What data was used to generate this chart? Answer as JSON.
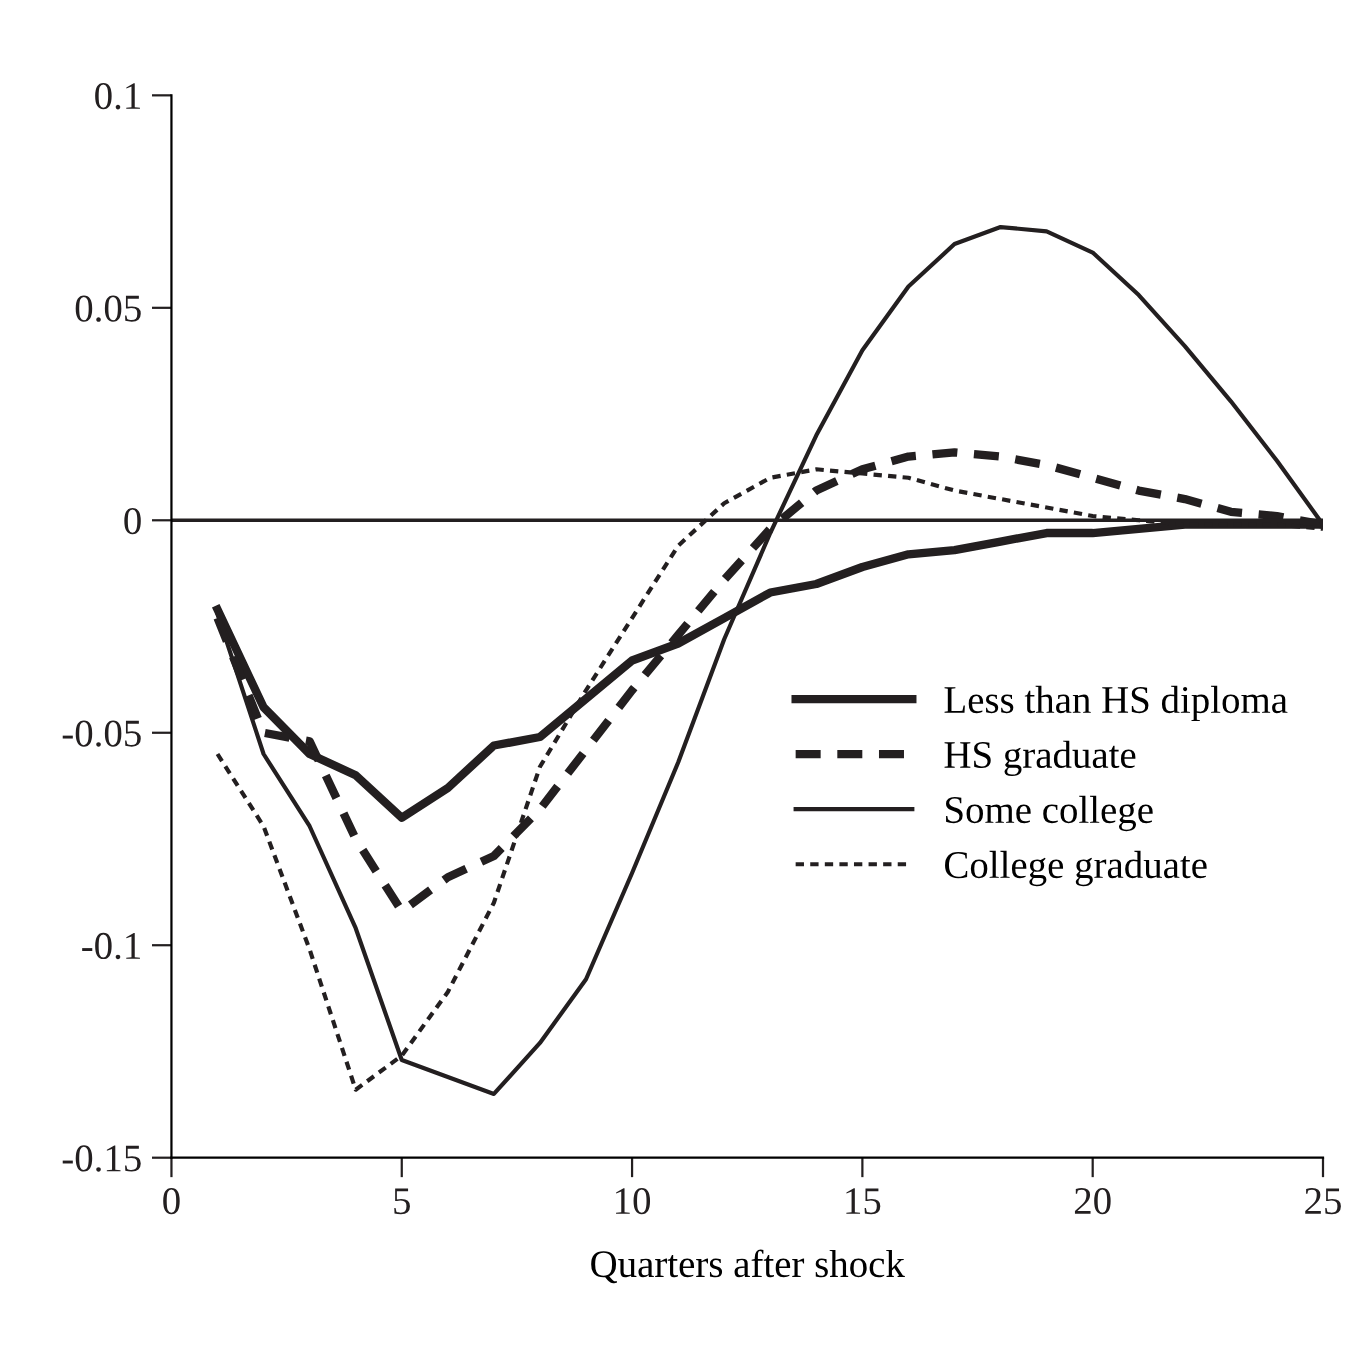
{
  "chart_data": {
    "type": "line",
    "xlabel": "Quarters after shock",
    "x": [
      1,
      2,
      3,
      4,
      5,
      6,
      7,
      8,
      9,
      10,
      11,
      12,
      13,
      14,
      15,
      16,
      17,
      18,
      19,
      20,
      21,
      22,
      23,
      24,
      25
    ],
    "series": [
      {
        "name": "Less than HS diploma",
        "color": "#231f20",
        "line_style": "solid",
        "values": [
          -0.021,
          -0.044,
          -0.055,
          -0.06,
          -0.07,
          -0.063,
          -0.053,
          -0.051,
          -0.042,
          -0.033,
          -0.029,
          -0.023,
          -0.017,
          -0.015,
          -0.011,
          -0.008,
          -0.007,
          -0.005,
          -0.003,
          -0.003,
          -0.002,
          -0.001,
          -0.001,
          -0.001,
          -0.001
        ]
      },
      {
        "name": "HS graduate",
        "color": "#231f20",
        "line_style": "dashed",
        "values": [
          -0.023,
          -0.05,
          -0.052,
          -0.075,
          -0.092,
          -0.084,
          -0.079,
          -0.068,
          -0.054,
          -0.04,
          -0.027,
          -0.014,
          -0.002,
          0.007,
          0.012,
          0.015,
          0.016,
          0.015,
          0.013,
          0.01,
          0.007,
          0.005,
          0.002,
          0.001,
          -0.001
        ]
      },
      {
        "name": "Some college",
        "color": "#231f20",
        "line_style": "solid",
        "values": [
          -0.022,
          -0.055,
          -0.072,
          -0.096,
          -0.127,
          -0.131,
          -0.135,
          -0.123,
          -0.108,
          -0.083,
          -0.057,
          -0.028,
          -0.003,
          0.02,
          0.04,
          0.055,
          0.065,
          0.069,
          0.068,
          0.063,
          0.053,
          0.041,
          0.028,
          0.014,
          -0.001
        ]
      },
      {
        "name": "College graduate",
        "color": "#231f20",
        "line_style": "dotted",
        "values": [
          -0.055,
          -0.072,
          -0.101,
          -0.134,
          -0.126,
          -0.111,
          -0.09,
          -0.058,
          -0.04,
          -0.023,
          -0.006,
          0.004,
          0.01,
          0.012,
          0.011,
          0.01,
          0.007,
          0.005,
          0.003,
          0.001,
          0.0,
          -0.001,
          -0.001,
          -0.001,
          -0.002
        ]
      }
    ],
    "xlim": [
      0,
      25
    ],
    "xticks": [
      0,
      5,
      10,
      15,
      20,
      25
    ],
    "ylim": [
      -0.15,
      0.1
    ],
    "yticks": [
      -0.15,
      -0.1,
      -0.05,
      0,
      0.05,
      0.1
    ],
    "ref_lines": [
      {
        "axis": "y",
        "value": 0,
        "color": "#231f20"
      }
    ],
    "grid": false,
    "legend": "right",
    "marker": "none"
  }
}
